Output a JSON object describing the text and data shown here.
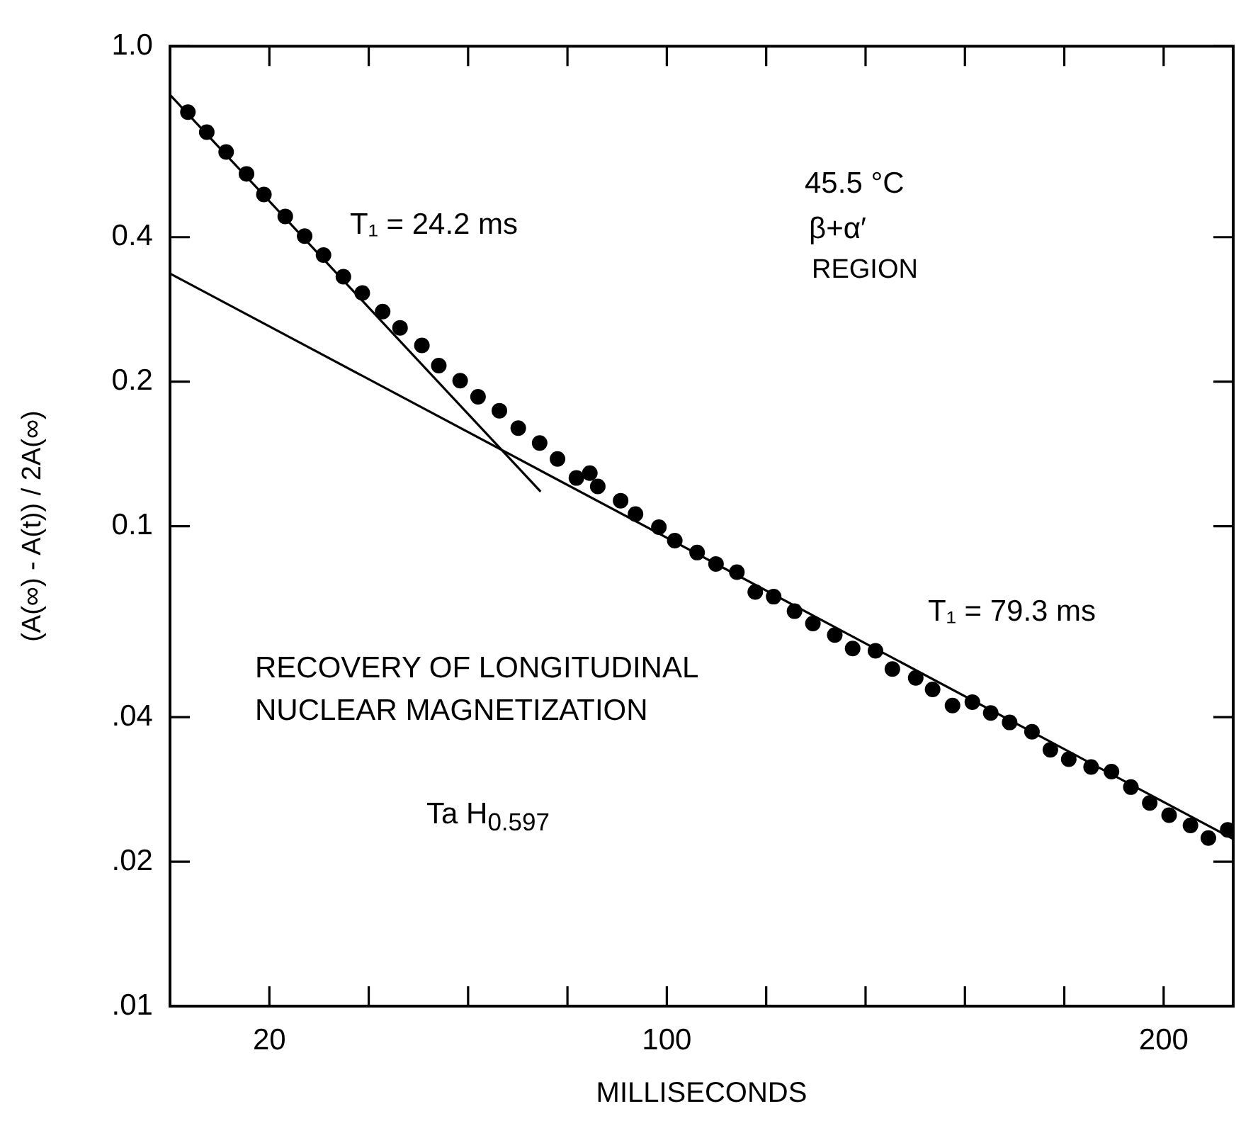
{
  "chart_data": {
    "type": "scatter",
    "xlabel": "MILLISECONDS",
    "ylabel": "(A(∞) - A(t)) / 2A(∞)",
    "log": "y",
    "xlim": [
      0,
      214
    ],
    "ylim": [
      0.01,
      1
    ],
    "xticks": [
      {
        "value": 20,
        "label": "20"
      },
      {
        "value": 40,
        "label": null
      },
      {
        "value": 60,
        "label": null
      },
      {
        "value": 80,
        "label": null
      },
      100,
      {
        "value": 120,
        "label": null
      },
      {
        "value": 140,
        "label": null
      },
      {
        "value": 160,
        "label": null
      },
      {
        "value": 180,
        "label": null
      },
      200
    ],
    "yticks": [
      {
        "value": 0.01,
        "label": ".01"
      },
      {
        "value": 0.02,
        "label": ".02"
      },
      {
        "value": 0.04,
        "label": ".04"
      },
      0.1,
      0.2,
      0.4,
      {
        "value": 1,
        "label": "1.0"
      }
    ],
    "series": [
      {
        "color": "#000000",
        "marker": "circle",
        "x": [
          3.6,
          7.4,
          11.3,
          15.4,
          18.9,
          23.2,
          27.1,
          30.9,
          34.9,
          38.7,
          42.8,
          46.3,
          50.7,
          54.1,
          58.4,
          62.0,
          66.3,
          70.1,
          74.4,
          78.0,
          81.8,
          84.5,
          86.1,
          90.7,
          93.7,
          98.4,
          101.6,
          106.1,
          109.9,
          114.1,
          117.8,
          121.5,
          125.7,
          129.4,
          133.8,
          137.4,
          142.0,
          145.4,
          150.1,
          153.5,
          157.5,
          161.5,
          165.2,
          169.0,
          173.5,
          177.2,
          180.9,
          185.4,
          189.5,
          193.4,
          197.2,
          201.1,
          205.4,
          209.0,
          212.9
        ],
        "values": [
          0.729,
          0.662,
          0.602,
          0.542,
          0.491,
          0.442,
          0.402,
          0.367,
          0.331,
          0.306,
          0.28,
          0.259,
          0.238,
          0.216,
          0.201,
          0.186,
          0.174,
          0.16,
          0.149,
          0.138,
          0.126,
          0.129,
          0.121,
          0.113,
          0.106,
          0.0995,
          0.0933,
          0.0881,
          0.0834,
          0.0802,
          0.0729,
          0.0713,
          0.0665,
          0.0627,
          0.0593,
          0.0556,
          0.055,
          0.0504,
          0.0483,
          0.0457,
          0.0423,
          0.043,
          0.0408,
          0.039,
          0.0373,
          0.0342,
          0.0327,
          0.0315,
          0.0308,
          0.0286,
          0.0265,
          0.025,
          0.0238,
          0.0224,
          0.0233
        ]
      },
      {
        "type": "line",
        "color": "#000000",
        "line_style": "solid",
        "x": [
          0,
          74.6
        ],
        "values": [
          0.792,
          0.118
        ]
      },
      {
        "type": "line",
        "color": "#000000",
        "line_style": "solid",
        "x": [
          0,
          214
        ],
        "values": [
          0.336,
          0.0223
        ]
      }
    ],
    "annotations": [
      "T₁ = 24.2 ms",
      "T₁ = 79.3 ms",
      "45.5 °C",
      "β+α′",
      "REGION",
      "RECOVERY OF LONGITUDINAL",
      "NUCLEAR MAGNETIZATION",
      "Ta H$_{0.597}$"
    ]
  }
}
